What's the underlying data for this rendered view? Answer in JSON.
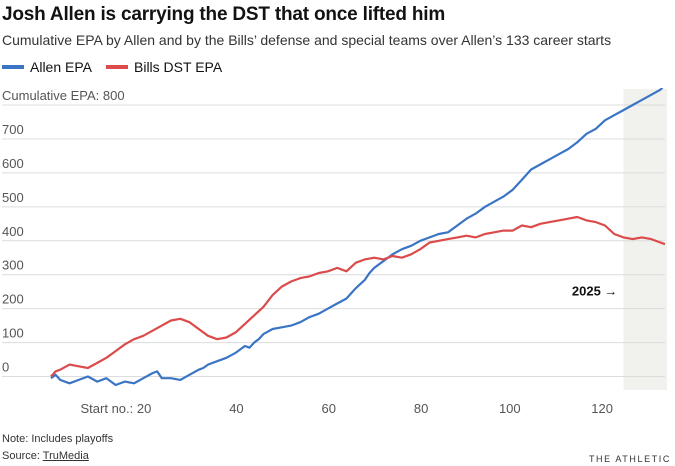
{
  "header": {
    "title": "Josh Allen is carrying the DST that once lifted him",
    "subtitle": "Cumulative EPA by Allen and by the Bills’ defense and special teams over Allen’s 133 career starts"
  },
  "footer": {
    "note": "Note: Includes playoffs",
    "source_label": "Source: ",
    "source_name": "TruMedia",
    "brand": "THE ATHLETIC"
  },
  "chart_data": {
    "type": "line",
    "xlim": [
      0,
      133
    ],
    "ylim": [
      -25,
      800
    ],
    "x_ticks": [
      {
        "value": 20,
        "label": "Start no.: 20"
      },
      {
        "value": 40,
        "label": "40"
      },
      {
        "value": 60,
        "label": "60"
      },
      {
        "value": 80,
        "label": "80"
      },
      {
        "value": 100,
        "label": "100"
      },
      {
        "value": 120,
        "label": "120"
      }
    ],
    "y_ticks": [
      {
        "value": 800,
        "label": "Cumulative EPA: 800"
      },
      {
        "value": 700,
        "label": "700"
      },
      {
        "value": 600,
        "label": "600"
      },
      {
        "value": 500,
        "label": "500"
      },
      {
        "value": 400,
        "label": "400"
      },
      {
        "value": 300,
        "label": "300"
      },
      {
        "value": 200,
        "label": "200"
      },
      {
        "value": 100,
        "label": "100"
      },
      {
        "value": 0,
        "label": "0"
      }
    ],
    "grid": true,
    "highlight": {
      "x_start": 124,
      "x_end": 133,
      "label": "2025 →",
      "label_y": 250
    },
    "series": [
      {
        "name": "Allen EPA",
        "color": "#3a74c4",
        "points": [
          [
            0,
            -5
          ],
          [
            1,
            5
          ],
          [
            2,
            -10
          ],
          [
            4,
            -20
          ],
          [
            6,
            -10
          ],
          [
            8,
            0
          ],
          [
            10,
            -15
          ],
          [
            12,
            -5
          ],
          [
            14,
            -25
          ],
          [
            16,
            -15
          ],
          [
            18,
            -20
          ],
          [
            20,
            -5
          ],
          [
            22,
            10
          ],
          [
            23,
            15
          ],
          [
            24,
            -5
          ],
          [
            26,
            -5
          ],
          [
            28,
            -10
          ],
          [
            30,
            5
          ],
          [
            32,
            20
          ],
          [
            33,
            25
          ],
          [
            34,
            35
          ],
          [
            36,
            45
          ],
          [
            38,
            55
          ],
          [
            40,
            70
          ],
          [
            41,
            80
          ],
          [
            42,
            90
          ],
          [
            43,
            85
          ],
          [
            44,
            100
          ],
          [
            45,
            110
          ],
          [
            46,
            125
          ],
          [
            48,
            140
          ],
          [
            50,
            145
          ],
          [
            52,
            150
          ],
          [
            54,
            160
          ],
          [
            56,
            175
          ],
          [
            58,
            185
          ],
          [
            60,
            200
          ],
          [
            62,
            215
          ],
          [
            64,
            230
          ],
          [
            65,
            245
          ],
          [
            66,
            260
          ],
          [
            68,
            285
          ],
          [
            69,
            305
          ],
          [
            70,
            320
          ],
          [
            72,
            340
          ],
          [
            74,
            360
          ],
          [
            76,
            375
          ],
          [
            78,
            385
          ],
          [
            80,
            400
          ],
          [
            82,
            410
          ],
          [
            84,
            420
          ],
          [
            86,
            425
          ],
          [
            88,
            445
          ],
          [
            90,
            465
          ],
          [
            92,
            480
          ],
          [
            94,
            500
          ],
          [
            96,
            515
          ],
          [
            98,
            530
          ],
          [
            100,
            550
          ],
          [
            102,
            580
          ],
          [
            104,
            610
          ],
          [
            106,
            625
          ],
          [
            108,
            640
          ],
          [
            110,
            655
          ],
          [
            112,
            670
          ],
          [
            114,
            690
          ],
          [
            116,
            715
          ],
          [
            118,
            730
          ],
          [
            120,
            755
          ],
          [
            122,
            770
          ],
          [
            124,
            785
          ],
          [
            126,
            800
          ],
          [
            128,
            815
          ],
          [
            130,
            830
          ],
          [
            132,
            845
          ],
          [
            133,
            860
          ]
        ]
      },
      {
        "name": "Bills DST EPA",
        "color": "#db4b4b",
        "points": [
          [
            0,
            0
          ],
          [
            1,
            15
          ],
          [
            2,
            20
          ],
          [
            4,
            35
          ],
          [
            6,
            30
          ],
          [
            8,
            25
          ],
          [
            10,
            40
          ],
          [
            12,
            55
          ],
          [
            14,
            75
          ],
          [
            16,
            95
          ],
          [
            18,
            110
          ],
          [
            19,
            115
          ],
          [
            20,
            120
          ],
          [
            22,
            135
          ],
          [
            24,
            150
          ],
          [
            26,
            165
          ],
          [
            28,
            170
          ],
          [
            30,
            160
          ],
          [
            32,
            140
          ],
          [
            34,
            120
          ],
          [
            36,
            110
          ],
          [
            38,
            115
          ],
          [
            40,
            130
          ],
          [
            42,
            155
          ],
          [
            44,
            180
          ],
          [
            46,
            205
          ],
          [
            48,
            240
          ],
          [
            50,
            265
          ],
          [
            52,
            280
          ],
          [
            54,
            290
          ],
          [
            56,
            295
          ],
          [
            58,
            305
          ],
          [
            60,
            310
          ],
          [
            62,
            320
          ],
          [
            64,
            310
          ],
          [
            66,
            335
          ],
          [
            68,
            345
          ],
          [
            70,
            350
          ],
          [
            72,
            345
          ],
          [
            74,
            355
          ],
          [
            76,
            350
          ],
          [
            78,
            360
          ],
          [
            80,
            375
          ],
          [
            82,
            395
          ],
          [
            84,
            400
          ],
          [
            86,
            405
          ],
          [
            88,
            410
          ],
          [
            90,
            415
          ],
          [
            92,
            410
          ],
          [
            94,
            420
          ],
          [
            96,
            425
          ],
          [
            98,
            430
          ],
          [
            100,
            430
          ],
          [
            102,
            445
          ],
          [
            104,
            440
          ],
          [
            106,
            450
          ],
          [
            108,
            455
          ],
          [
            110,
            460
          ],
          [
            112,
            465
          ],
          [
            114,
            470
          ],
          [
            116,
            460
          ],
          [
            118,
            455
          ],
          [
            120,
            445
          ],
          [
            122,
            420
          ],
          [
            124,
            410
          ],
          [
            126,
            405
          ],
          [
            128,
            410
          ],
          [
            130,
            405
          ],
          [
            132,
            395
          ],
          [
            133,
            390
          ]
        ]
      }
    ]
  }
}
